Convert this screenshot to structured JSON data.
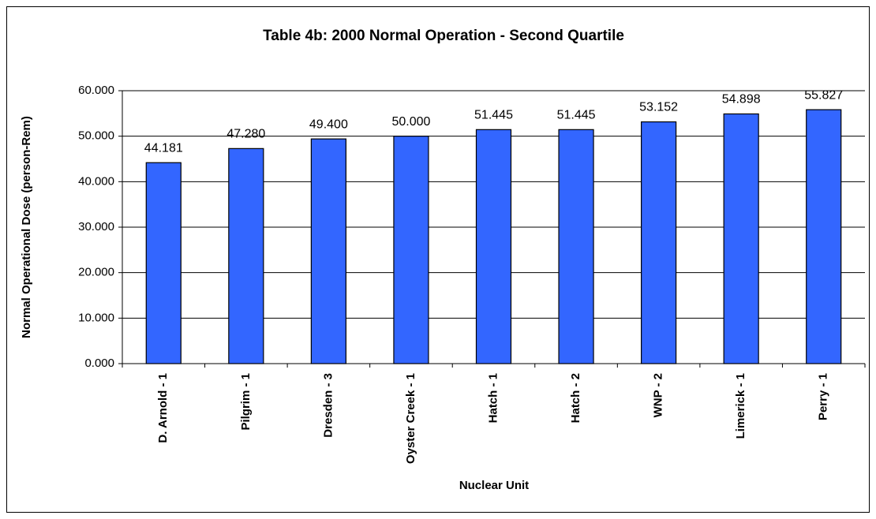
{
  "chart_data": {
    "type": "bar",
    "title": "Table 4b: 2000 Normal Operation - Second Quartile",
    "x_label": "Nuclear Unit",
    "y_label": "Normal Operational Dose (person-Rem)",
    "categories": [
      "D. Arnold - 1",
      "Pilgrim - 1",
      "Dresden - 3",
      "Oyster Creek - 1",
      "Hatch - 1",
      "Hatch - 2",
      "WNP - 2",
      "Limerick - 1",
      "Perry - 1"
    ],
    "values": [
      44.181,
      47.28,
      49.4,
      50.0,
      51.445,
      51.445,
      53.152,
      54.898,
      55.827
    ],
    "value_labels": [
      "44.181",
      "47.280",
      "49.400",
      "50.000",
      "51.445",
      "51.445",
      "53.152",
      "54.898",
      "55.827"
    ],
    "color": "#3366ff",
    "ylim": [
      0,
      60
    ],
    "yticks": [
      {
        "value": 0,
        "label": "0.000"
      },
      {
        "value": 10,
        "label": "10.000"
      },
      {
        "value": 20,
        "label": "20.000"
      },
      {
        "value": 30,
        "label": "30.000"
      },
      {
        "value": 40,
        "label": "40.000"
      },
      {
        "value": 50,
        "label": "50.000"
      },
      {
        "value": 60,
        "label": "60.000"
      }
    ],
    "grid": true
  }
}
